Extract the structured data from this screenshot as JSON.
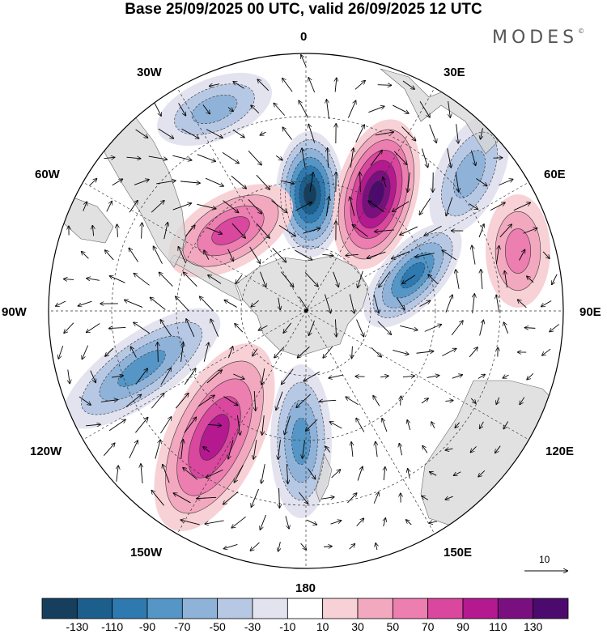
{
  "title": "Base 25/09/2025 00 UTC, valid 26/09/2025 12 UTC",
  "brand": "MODES",
  "brand_mark": "©",
  "longitude_labels": [
    "0",
    "30E",
    "60E",
    "90E",
    "120E",
    "150E",
    "180",
    "150W",
    "120W",
    "90W",
    "60W",
    "30W"
  ],
  "wind_reference": "10",
  "colorbar": {
    "labels": [
      "-130",
      "-110",
      "-90",
      "-70",
      "-50",
      "-30",
      "-10",
      "10",
      "30",
      "50",
      "70",
      "90",
      "110",
      "130"
    ],
    "colors": [
      "#163f5e",
      "#1d5f8c",
      "#2e79b0",
      "#5596c6",
      "#8fb2d8",
      "#b7c8e4",
      "#e3e3f0",
      "#ffffff",
      "#f7d1d6",
      "#f2a9bf",
      "#ec7eb0",
      "#d9479e",
      "#b4198f",
      "#7a1080",
      "#4d0a6e"
    ]
  },
  "chart_data": {
    "type": "heatmap",
    "title": "Base 25/09/2025 00 UTC, valid 26/09/2025 12 UTC",
    "projection": "south polar stereographic",
    "field_range": [
      -130,
      130
    ],
    "contour_levels": [
      -130,
      -110,
      -90,
      -70,
      -50,
      -30,
      -10,
      10,
      30,
      50,
      70,
      90,
      110,
      130
    ],
    "wind_reference_speed": 10,
    "anomaly_centers": [
      {
        "name": "neg-0E",
        "value": -130
      },
      {
        "name": "pos-20E",
        "value": 130
      },
      {
        "name": "neg-60E",
        "value": -90
      },
      {
        "name": "neg-110W",
        "value": -70
      },
      {
        "name": "pos-145W",
        "value": 90
      },
      {
        "name": "neg-175W",
        "value": -70
      },
      {
        "name": "pos-60W",
        "value": 60
      },
      {
        "name": "neg-30W",
        "value": -50
      },
      {
        "name": "neg-45E",
        "value": -50
      },
      {
        "name": "pos-80E",
        "value": 40
      }
    ]
  }
}
